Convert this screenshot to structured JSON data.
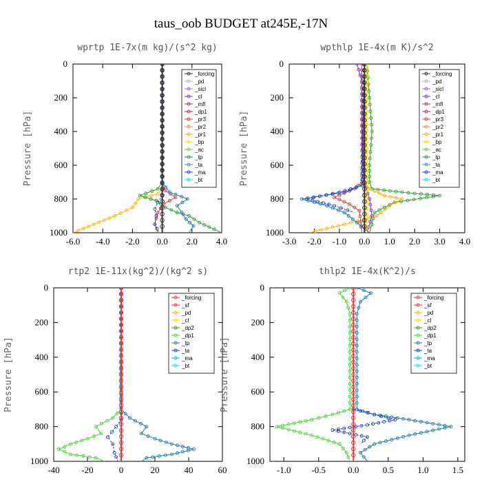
{
  "figure_title": "taus_oob  BUDGET at245E,-17N",
  "chart_data": [
    {
      "type": "line",
      "title": "wprtp  1E-7x(m kg)/(s^2 kg)",
      "ylabel": "Pressure [hPa]",
      "xlim": [
        -6,
        4
      ],
      "ylim": [
        1000,
        0
      ],
      "xticks": [
        "-6.0",
        "-4.0",
        "-2.0",
        "0.0",
        "2.0",
        "4.0"
      ],
      "yticks": [
        "0",
        "200",
        "400",
        "600",
        "800",
        "1000"
      ],
      "legend_position": "top-right",
      "legend": [
        {
          "name": "_forcing",
          "color": "#333333"
        },
        {
          "name": "_pd",
          "color": "#c8a0e6"
        },
        {
          "name": "_sicl",
          "color": "#9966dd"
        },
        {
          "name": "_cl",
          "color": "#8a2be2"
        },
        {
          "name": "_mfl",
          "color": "#b0306a"
        },
        {
          "name": "_dp1",
          "color": "#d81b60"
        },
        {
          "name": "_pr3",
          "color": "#e53935"
        },
        {
          "name": "_pr2",
          "color": "#ff7f50"
        },
        {
          "name": "_pr1",
          "color": "#ffb300"
        },
        {
          "name": "_bp",
          "color": "#ffd700"
        },
        {
          "name": "_ac",
          "color": "#7cc242"
        },
        {
          "name": "_tp",
          "color": "#2e8b57"
        },
        {
          "name": "_ta",
          "color": "#3a8fc8"
        },
        {
          "name": "_ma",
          "color": "#1f3fd0"
        },
        {
          "name": "_bt",
          "color": "#00e5ee"
        }
      ],
      "series": [
        {
          "name": "_pr1",
          "color": "#ffb300",
          "x": [
            0,
            0,
            0,
            0,
            -0.3,
            -1.6,
            -2.0,
            -3.2,
            -4.6,
            -6.0
          ],
          "y": [
            0,
            600,
            700,
            740,
            770,
            800,
            850,
            900,
            950,
            1000
          ]
        },
        {
          "name": "_dp1",
          "color": "#e53935",
          "x": [
            0,
            0,
            0.2,
            0.9,
            0.1,
            -0.3,
            -0.5,
            -0.3
          ],
          "y": [
            0,
            700,
            750,
            790,
            830,
            880,
            950,
            1000
          ]
        },
        {
          "name": "_ac",
          "color": "#2ca02c",
          "x": [
            0,
            0,
            -0.3,
            -1.5,
            -0.4,
            0.2,
            1.0,
            1.8,
            2.5,
            3.5,
            4.0
          ],
          "y": [
            0,
            700,
            740,
            780,
            810,
            850,
            880,
            900,
            940,
            980,
            1000
          ]
        },
        {
          "name": "_tp",
          "color": "#1f77b4",
          "x": [
            0,
            0,
            0.5,
            1.7,
            1.0,
            1.3,
            1.6,
            2.1,
            1.8
          ],
          "y": [
            0,
            700,
            760,
            800,
            840,
            880,
            920,
            960,
            1000
          ]
        },
        {
          "name": "_ta",
          "color": "#1f3fd0",
          "x": [
            0,
            0,
            -0.3,
            -0.5,
            -0.4,
            -0.5,
            -0.2
          ],
          "y": [
            0,
            780,
            820,
            860,
            900,
            950,
            1000
          ]
        },
        {
          "name": "_forcing",
          "color": "#333333",
          "x": [
            0,
            0
          ],
          "y": [
            0,
            1000
          ]
        }
      ]
    },
    {
      "type": "line",
      "title": "wpthlp  1E-4x(m K)/s^2",
      "ylabel": "Pressure [hPa]",
      "xlim": [
        -3,
        4
      ],
      "ylim": [
        1000,
        0
      ],
      "xticks": [
        "-3.0",
        "-2.0",
        "-1.0",
        "0.0",
        "1.0",
        "2.0",
        "3.0",
        "4.0"
      ],
      "yticks": [
        "0",
        "200",
        "400",
        "600",
        "800",
        "1000"
      ],
      "legend_position": "top-right",
      "legend": [
        {
          "name": "_forcing",
          "color": "#333333"
        },
        {
          "name": "_pd",
          "color": "#c8a0e6"
        },
        {
          "name": "_sicl",
          "color": "#9966dd"
        },
        {
          "name": "_cl",
          "color": "#8a2be2"
        },
        {
          "name": "_mfl",
          "color": "#b0306a"
        },
        {
          "name": "_dp1",
          "color": "#d81b60"
        },
        {
          "name": "_pr3",
          "color": "#e53935"
        },
        {
          "name": "_pr2",
          "color": "#ff7f50"
        },
        {
          "name": "_pr1",
          "color": "#ffb300"
        },
        {
          "name": "_bp",
          "color": "#ffd700"
        },
        {
          "name": "_ac",
          "color": "#7cc242"
        },
        {
          "name": "_tp",
          "color": "#2e8b57"
        },
        {
          "name": "_ta",
          "color": "#3a8fc8"
        },
        {
          "name": "_ma",
          "color": "#1f3fd0"
        },
        {
          "name": "_bt",
          "color": "#00e5ee"
        }
      ],
      "series": [
        {
          "name": "_ac",
          "color": "#2ca02c",
          "x": [
            0.1,
            0.2,
            0.3,
            0.2,
            0.2,
            0.3,
            1.5,
            3.0,
            1.2,
            0.4,
            0.3,
            0.2
          ],
          "y": [
            0,
            200,
            400,
            600,
            700,
            740,
            760,
            780,
            820,
            880,
            950,
            1000
          ]
        },
        {
          "name": "_pr1",
          "color": "#ffb300",
          "x": [
            0,
            0,
            0.2,
            0.8,
            1.5,
            1.0,
            0.5,
            -0.8,
            -2.2
          ],
          "y": [
            0,
            700,
            740,
            780,
            800,
            840,
            900,
            950,
            1000
          ]
        },
        {
          "name": "_dp1",
          "color": "#e53935",
          "x": [
            -0.1,
            -0.1,
            -0.4,
            -1.2,
            -0.6,
            -0.2,
            -0.1
          ],
          "y": [
            0,
            700,
            740,
            790,
            830,
            870,
            1000
          ]
        },
        {
          "name": "_tp",
          "color": "#1f77b4",
          "x": [
            0,
            -0.1,
            -0.8,
            -2.5,
            -1.5,
            -0.8,
            -0.3,
            0.2
          ],
          "y": [
            0,
            720,
            760,
            800,
            840,
            880,
            940,
            1000
          ]
        },
        {
          "name": "_ta",
          "color": "#1f3fd0",
          "x": [
            0,
            -0.1,
            -1.0,
            -2.3,
            -1.2,
            -0.4
          ],
          "y": [
            0,
            720,
            760,
            800,
            840,
            880
          ]
        },
        {
          "name": "_cl",
          "color": "#8a2be2",
          "x": [
            -0.3,
            -0.1,
            -0.1,
            0,
            0.2,
            0.3,
            0.1
          ],
          "y": [
            0,
            100,
            400,
            700,
            800,
            900,
            1000
          ]
        },
        {
          "name": "_bp",
          "color": "#ffd700",
          "x": [
            0.1,
            0.1,
            0.1
          ],
          "y": [
            0,
            500,
            1000
          ]
        },
        {
          "name": "_forcing",
          "color": "#333333",
          "x": [
            0,
            0
          ],
          "y": [
            0,
            1000
          ]
        }
      ]
    },
    {
      "type": "line",
      "title": "rtp2  1E-11x(kg^2)/(kg^2 s)",
      "ylabel": "Pressure [hPa]",
      "xlim": [
        -40,
        60
      ],
      "ylim": [
        1000,
        0
      ],
      "xticks": [
        "-40",
        "-20",
        "0",
        "20",
        "40",
        "60"
      ],
      "yticks": [
        "0",
        "200",
        "400",
        "600",
        "800",
        "1000"
      ],
      "legend_position": "top-right",
      "legend": [
        {
          "name": "_forcing",
          "color": "#e53935"
        },
        {
          "name": "_sf",
          "color": "#e53935"
        },
        {
          "name": "_pd",
          "color": "#ffb300"
        },
        {
          "name": "_cl",
          "color": "#ffd700"
        },
        {
          "name": "_dp2",
          "color": "#2ca02c"
        },
        {
          "name": "_dp1",
          "color": "#4cd137"
        },
        {
          "name": "_tp",
          "color": "#1f77b4"
        },
        {
          "name": "_ta",
          "color": "#1f3fd0"
        },
        {
          "name": "_ma",
          "color": "#00bcd4"
        },
        {
          "name": "_bt",
          "color": "#00e5ee"
        }
      ],
      "series": [
        {
          "name": "_dp1",
          "color": "#4cd137",
          "x": [
            0,
            0,
            -5,
            -15,
            -12,
            -20,
            -30,
            -37,
            -30,
            -15,
            -10
          ],
          "y": [
            0,
            700,
            750,
            800,
            840,
            870,
            900,
            930,
            960,
            980,
            1000
          ]
        },
        {
          "name": "_tp",
          "color": "#1f77b4",
          "x": [
            0,
            0,
            5,
            15,
            12,
            20,
            30,
            43,
            30,
            15,
            12
          ],
          "y": [
            0,
            700,
            750,
            800,
            840,
            870,
            900,
            930,
            960,
            980,
            1000
          ]
        },
        {
          "name": "_ta",
          "color": "#1f3fd0",
          "x": [
            0,
            0,
            -3,
            -8,
            -5,
            -4,
            -2
          ],
          "y": [
            0,
            760,
            800,
            860,
            900,
            950,
            1000
          ]
        },
        {
          "name": "_forcing",
          "color": "#e53935",
          "x": [
            0,
            0
          ],
          "y": [
            0,
            1000
          ]
        }
      ]
    },
    {
      "type": "line",
      "title": "thlp2  1E-4x(K^2)/s",
      "ylabel": "Pressure [hPa]",
      "xlim": [
        -1.2,
        1.6
      ],
      "ylim": [
        1000,
        0
      ],
      "xticks": [
        "-1.0",
        "-0.5",
        "0.0",
        "0.5",
        "1.0",
        "1.5"
      ],
      "yticks": [
        "0",
        "200",
        "400",
        "600",
        "800",
        "1000"
      ],
      "legend_position": "top-right",
      "legend": [
        {
          "name": "_forcing",
          "color": "#e53935"
        },
        {
          "name": "_sf",
          "color": "#e53935"
        },
        {
          "name": "_pd",
          "color": "#ffb300"
        },
        {
          "name": "_cl",
          "color": "#ffd700"
        },
        {
          "name": "_dp2",
          "color": "#2ca02c"
        },
        {
          "name": "_dp1",
          "color": "#4cd137"
        },
        {
          "name": "_tp",
          "color": "#1f77b4"
        },
        {
          "name": "_ta",
          "color": "#1f3fd0"
        },
        {
          "name": "_ma",
          "color": "#00bcd4"
        },
        {
          "name": "_bt",
          "color": "#00e5ee"
        }
      ],
      "series": [
        {
          "name": "_dp1",
          "color": "#4cd137",
          "x": [
            -0.05,
            -0.2,
            -0.1,
            -0.05,
            -0.05,
            -0.3,
            -0.6,
            -1.1,
            -0.6,
            -0.2,
            -0.1,
            -0.05
          ],
          "y": [
            0,
            30,
            80,
            150,
            700,
            730,
            760,
            800,
            850,
            900,
            950,
            1000
          ]
        },
        {
          "name": "_tp",
          "color": "#1f77b4",
          "x": [
            0.05,
            0.25,
            0.1,
            0.05,
            0.05,
            0.3,
            0.8,
            1.4,
            0.8,
            0.3,
            0.1,
            0.2
          ],
          "y": [
            0,
            30,
            80,
            150,
            700,
            730,
            760,
            800,
            850,
            900,
            950,
            1000
          ]
        },
        {
          "name": "_ta",
          "color": "#1f3fd0",
          "x": [
            0,
            0.3,
            0.6,
            0.2,
            -0.3,
            0.2,
            0.1
          ],
          "y": [
            700,
            730,
            760,
            790,
            820,
            860,
            900
          ]
        },
        {
          "name": "_forcing",
          "color": "#e53935",
          "x": [
            0,
            0
          ],
          "y": [
            0,
            1000
          ]
        }
      ]
    }
  ]
}
